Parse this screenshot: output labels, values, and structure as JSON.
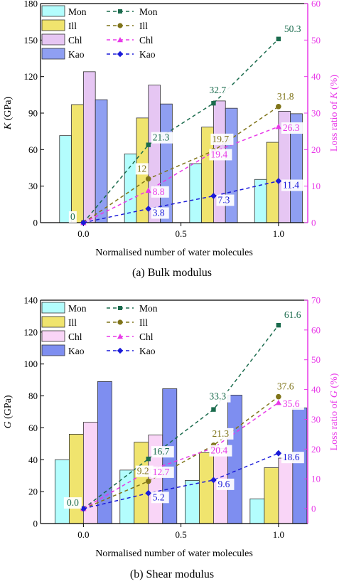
{
  "chart_data": [
    {
      "type": "bar",
      "caption": "(a) Bulk modulus",
      "x": [
        0.0,
        0.333,
        0.667,
        1.0
      ],
      "xlim": [
        -0.22,
        1.15
      ],
      "xticks": [
        "0.0",
        "0.5",
        "1.0"
      ],
      "xtick_values": [
        0.0,
        0.5,
        1.0
      ],
      "xlabel": "Normalised number of water molecules",
      "ylabel_parts": [
        "K",
        " (GPa)"
      ],
      "ylim": [
        0,
        180
      ],
      "yticks": [
        "0",
        "30",
        "60",
        "90",
        "120",
        "150",
        "180"
      ],
      "y2label_parts": [
        "Loss ratio of ",
        "K",
        " (%)"
      ],
      "y2lim": [
        0,
        60
      ],
      "y2ticks": [
        "0",
        "10",
        "20",
        "30",
        "40",
        "50",
        "60"
      ],
      "legend_bars_labels": [
        "Mon",
        "Ill",
        "Chl",
        "Kao"
      ],
      "legend_lines_labels": [
        "Mon",
        "Ill",
        "Chl",
        "Kao"
      ],
      "bar_series": [
        {
          "name": "Mon",
          "color": "#b3fdfd",
          "values": [
            71.5,
            56.5,
            48.5,
            35.5
          ]
        },
        {
          "name": "Ill",
          "color": "#f0e46e",
          "values": [
            97,
            86,
            78.5,
            66
          ]
        },
        {
          "name": "Chl",
          "color": "#e6c6f3",
          "values": [
            124,
            113,
            100,
            91.5
          ]
        },
        {
          "name": "Kao",
          "color": "#8f9ff2",
          "values": [
            101,
            97.5,
            94,
            89.5
          ]
        }
      ],
      "line_series": [
        {
          "name": "Mon",
          "color": "#1a6b4d",
          "marker": "square",
          "values": [
            0,
            21.3,
            32.7,
            50.3
          ],
          "labels": [
            "0",
            "21.3",
            "32.7",
            "50.3"
          ]
        },
        {
          "name": "Ill",
          "color": "#7f7419",
          "marker": "circle",
          "values": [
            0,
            12,
            19.7,
            31.8
          ],
          "labels": [
            "",
            "12",
            "19.7",
            "31.8"
          ]
        },
        {
          "name": "Chl",
          "color": "#e838e8",
          "marker": "triangle",
          "values": [
            0,
            8.8,
            19.4,
            26.3
          ],
          "labels": [
            "",
            "8.8",
            "19.4",
            "26.3"
          ]
        },
        {
          "name": "Kao",
          "color": "#1a1ad9",
          "marker": "diamond",
          "values": [
            0,
            3.8,
            7.3,
            11.4
          ],
          "labels": [
            "",
            "3.8",
            "7.3",
            "11.4"
          ]
        }
      ]
    },
    {
      "type": "bar",
      "caption": "(b) Shear modulus",
      "x": [
        0.0,
        0.333,
        0.667,
        1.0
      ],
      "xlim": [
        -0.22,
        1.15
      ],
      "xticks": [
        "0.0",
        "0.5",
        "1.0"
      ],
      "xtick_values": [
        0.0,
        0.5,
        1.0
      ],
      "xlabel": "Normalised number of water molecules",
      "ylabel_parts": [
        "G",
        " (GPa)"
      ],
      "ylim": [
        0,
        140
      ],
      "yticks": [
        "0",
        "20",
        "40",
        "60",
        "80",
        "100",
        "120",
        "140"
      ],
      "y2label_parts": [
        "Loss ratio of ",
        "G",
        " (%)"
      ],
      "y2lim": [
        -5,
        70
      ],
      "y2ticks": [
        "0",
        "10",
        "20",
        "30",
        "40",
        "50",
        "60",
        "70"
      ],
      "legend_bars_labels": [
        "Mon",
        "Ill",
        "Chl",
        "Kao"
      ],
      "legend_lines_labels": [
        "Mon",
        "Ill",
        "Chl",
        "Kao"
      ],
      "bar_series": [
        {
          "name": "Mon",
          "color": "#b3fdfd",
          "values": [
            40,
            33.5,
            27,
            15.5
          ]
        },
        {
          "name": "Ill",
          "color": "#f0e46e",
          "values": [
            56,
            51,
            44.5,
            35
          ]
        },
        {
          "name": "Chl",
          "color": "#f9d5f7",
          "values": [
            63.5,
            55.5,
            47,
            41
          ]
        },
        {
          "name": "Kao",
          "color": "#7e8ef0",
          "values": [
            89,
            84.5,
            80.5,
            72.5
          ]
        }
      ],
      "line_series": [
        {
          "name": "Mon",
          "color": "#1a6b4d",
          "marker": "square",
          "values": [
            0,
            16.7,
            33.3,
            61.6
          ],
          "labels": [
            "0.0",
            "16.7",
            "33.3",
            "61.6"
          ]
        },
        {
          "name": "Ill",
          "color": "#7f7419",
          "marker": "circle",
          "values": [
            0,
            9.2,
            21.3,
            37.6
          ],
          "labels": [
            "",
            "9.2",
            "21.3",
            "37.6"
          ]
        },
        {
          "name": "Chl",
          "color": "#e838e8",
          "marker": "triangle",
          "values": [
            0,
            12.7,
            20.4,
            35.6
          ],
          "labels": [
            "",
            "12.7",
            "20.4",
            "35.6"
          ]
        },
        {
          "name": "Kao",
          "color": "#1a1ad9",
          "marker": "diamond",
          "values": [
            0,
            5.2,
            9.6,
            18.6
          ],
          "labels": [
            "",
            "5.2",
            "9.6",
            "18.6"
          ]
        }
      ]
    }
  ]
}
